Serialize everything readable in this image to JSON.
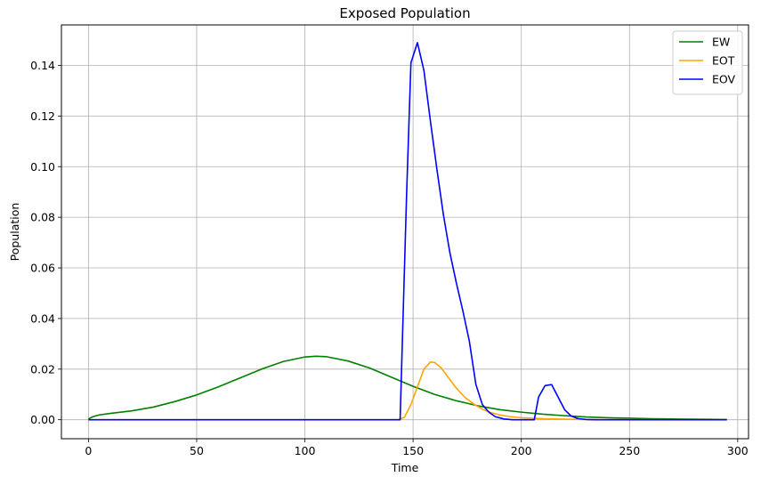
{
  "chart_data": {
    "type": "line",
    "title": "Exposed Population",
    "xlabel": "Time",
    "ylabel": "Population",
    "xlim": [
      -12.5,
      305
    ],
    "ylim": [
      -0.0075,
      0.156
    ],
    "xticks": [
      0,
      50,
      100,
      150,
      200,
      250,
      300
    ],
    "yticks": [
      0.0,
      0.02,
      0.04,
      0.06,
      0.08,
      0.1,
      0.12,
      0.14
    ],
    "ytick_labels": [
      "0.00",
      "0.02",
      "0.04",
      "0.06",
      "0.08",
      "0.10",
      "0.12",
      "0.14"
    ],
    "grid": true,
    "legend_position": "upper right",
    "series": [
      {
        "name": "EW",
        "color": "#008000",
        "points": [
          [
            0,
            0.0003
          ],
          [
            2,
            0.0012
          ],
          [
            5,
            0.0019
          ],
          [
            10,
            0.0025
          ],
          [
            20,
            0.0035
          ],
          [
            30,
            0.005
          ],
          [
            40,
            0.0072
          ],
          [
            50,
            0.0098
          ],
          [
            60,
            0.013
          ],
          [
            70,
            0.0165
          ],
          [
            80,
            0.02
          ],
          [
            90,
            0.023
          ],
          [
            100,
            0.0248
          ],
          [
            105,
            0.0251
          ],
          [
            110,
            0.0249
          ],
          [
            120,
            0.0232
          ],
          [
            130,
            0.0204
          ],
          [
            140,
            0.0168
          ],
          [
            150,
            0.0132
          ],
          [
            160,
            0.01
          ],
          [
            170,
            0.0075
          ],
          [
            180,
            0.0055
          ],
          [
            190,
            0.004
          ],
          [
            200,
            0.003
          ],
          [
            210,
            0.0022
          ],
          [
            220,
            0.0016
          ],
          [
            230,
            0.0011
          ],
          [
            240,
            0.0008
          ],
          [
            250,
            0.0006
          ],
          [
            260,
            0.0004
          ],
          [
            270,
            0.0003
          ],
          [
            280,
            0.0002
          ],
          [
            295,
            0.0001
          ]
        ]
      },
      {
        "name": "EOT",
        "color": "#FFA500",
        "points": [
          [
            0,
            0
          ],
          [
            143,
            0
          ],
          [
            146,
            0.001
          ],
          [
            149,
            0.006
          ],
          [
            152,
            0.013
          ],
          [
            155,
            0.02
          ],
          [
            158,
            0.0228
          ],
          [
            160,
            0.0226
          ],
          [
            163,
            0.0205
          ],
          [
            166,
            0.017
          ],
          [
            170,
            0.0125
          ],
          [
            174,
            0.0088
          ],
          [
            178,
            0.0062
          ],
          [
            182,
            0.0042
          ],
          [
            186,
            0.0028
          ],
          [
            190,
            0.0019
          ],
          [
            195,
            0.0012
          ],
          [
            200,
            0.0008
          ],
          [
            210,
            0.0004
          ],
          [
            220,
            0.0002
          ],
          [
            230,
            0.0001
          ],
          [
            240,
            0
          ],
          [
            295,
            0
          ]
        ]
      },
      {
        "name": "EOV",
        "color": "#0000FF",
        "points": [
          [
            0,
            0
          ],
          [
            143,
            0
          ],
          [
            144,
            0
          ],
          [
            147,
            0.089
          ],
          [
            149,
            0.141
          ],
          [
            152,
            0.149
          ],
          [
            155,
            0.138
          ],
          [
            158,
            0.118
          ],
          [
            161,
            0.099
          ],
          [
            164,
            0.081
          ],
          [
            167,
            0.066
          ],
          [
            170,
            0.054
          ],
          [
            173,
            0.043
          ],
          [
            176,
            0.031
          ],
          [
            179,
            0.014
          ],
          [
            182,
            0.006
          ],
          [
            185,
            0.003
          ],
          [
            188,
            0.0012
          ],
          [
            192,
            0.0003
          ],
          [
            196,
            0
          ],
          [
            206,
            0
          ],
          [
            208,
            0.009
          ],
          [
            211,
            0.0135
          ],
          [
            214,
            0.0139
          ],
          [
            217,
            0.009
          ],
          [
            220,
            0.004
          ],
          [
            223,
            0.0015
          ],
          [
            226,
            0.0005
          ],
          [
            230,
            0.0001
          ],
          [
            235,
            0
          ],
          [
            295,
            0
          ]
        ]
      }
    ]
  }
}
